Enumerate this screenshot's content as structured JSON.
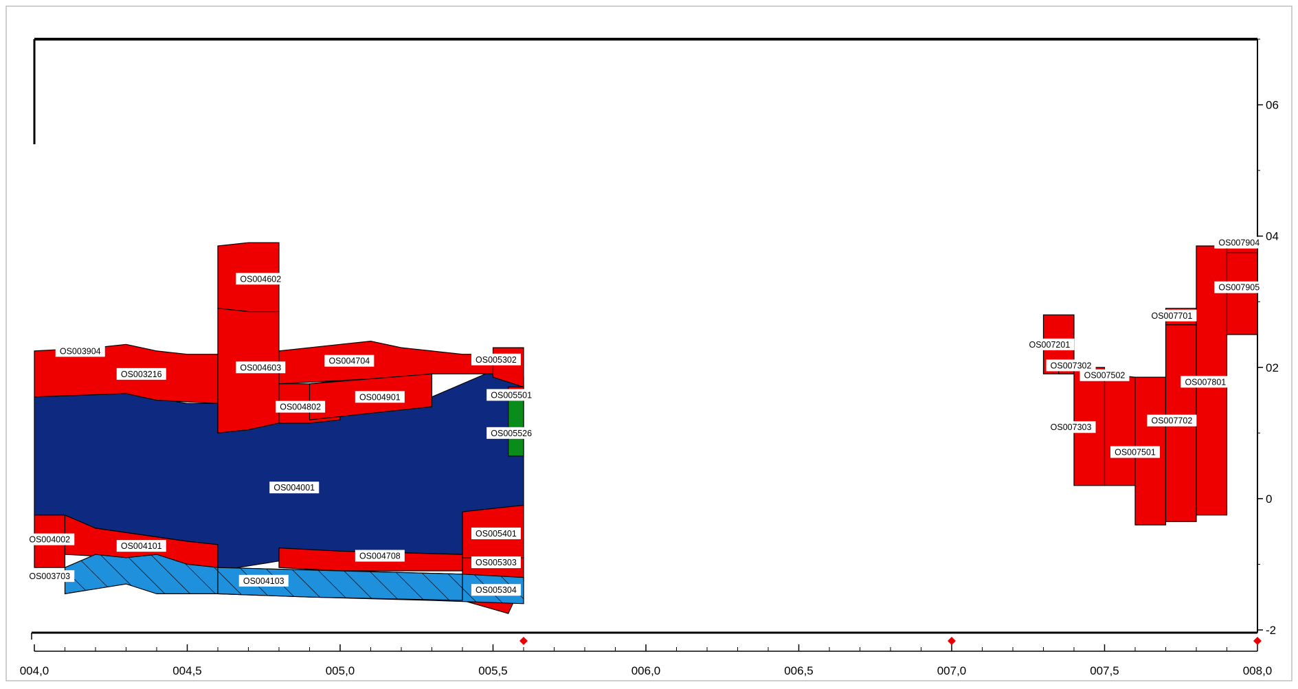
{
  "chart_data": {
    "type": "area",
    "title": "",
    "xlabel": "",
    "ylabel": "",
    "xlim": [
      4.0,
      8.0
    ],
    "ylim": [
      -2,
      7
    ],
    "x_tick_labels": [
      "004,0",
      "004,5",
      "005,0",
      "005,5",
      "006,0",
      "006,5",
      "007,0",
      "007,5",
      "008,0"
    ],
    "x_ticks": [
      4.0,
      4.5,
      5.0,
      5.5,
      6.0,
      6.5,
      7.0,
      7.5,
      8.0
    ],
    "y_tick_labels": [
      "06",
      "04",
      "02",
      "0",
      "-2"
    ],
    "y_ticks": [
      6,
      4,
      2,
      0,
      -2
    ],
    "minor_x_step": 0.1,
    "grid": false,
    "markers": [
      5.6,
      7.0,
      8.0
    ],
    "colors": {
      "red": "#ee0000",
      "navy": "#0e2a80",
      "lightblue": "#1e90dc",
      "green": "#0a8c1a",
      "outline": "#000000",
      "marker": "#e60000"
    },
    "layers": [
      {
        "name": "OS004001",
        "color": "navy",
        "hatch": false,
        "top": [
          [
            4.0,
            1.55
          ],
          [
            4.3,
            1.6
          ],
          [
            4.5,
            1.45
          ],
          [
            4.6,
            1.45
          ],
          [
            4.6,
            1.0
          ],
          [
            5.3,
            1.55
          ],
          [
            5.5,
            1.95
          ],
          [
            5.6,
            1.85
          ]
        ],
        "bottom": [
          [
            4.0,
            -0.25
          ],
          [
            4.2,
            -0.45
          ],
          [
            4.5,
            -0.65
          ],
          [
            4.6,
            -1.1
          ],
          [
            4.8,
            -0.95
          ],
          [
            5.0,
            -0.8
          ],
          [
            5.4,
            -0.85
          ],
          [
            5.5,
            -0.2
          ],
          [
            5.6,
            -0.1
          ]
        ]
      },
      {
        "name": "OS005526",
        "color": "green",
        "hatch": false,
        "top": [
          [
            5.55,
            1.5
          ],
          [
            5.6,
            1.5
          ]
        ],
        "bottom": [
          [
            5.55,
            0.65
          ],
          [
            5.6,
            0.65
          ]
        ]
      },
      {
        "name": "OS003904",
        "color": "red",
        "hatch": false,
        "top": [
          [
            4.0,
            2.25
          ],
          [
            4.2,
            2.3
          ],
          [
            4.3,
            2.35
          ],
          [
            4.4,
            2.25
          ],
          [
            4.5,
            2.2
          ],
          [
            4.6,
            2.2
          ]
        ],
        "bottom": [
          [
            4.0,
            1.55
          ],
          [
            4.3,
            1.6
          ],
          [
            4.4,
            1.5
          ],
          [
            4.6,
            1.45
          ]
        ]
      },
      {
        "name": "OS004602",
        "color": "red",
        "hatch": false,
        "top": [
          [
            4.6,
            3.85
          ],
          [
            4.7,
            3.9
          ],
          [
            4.8,
            3.9
          ]
        ],
        "bottom": [
          [
            4.6,
            2.9
          ],
          [
            4.7,
            2.85
          ],
          [
            4.8,
            2.85
          ]
        ]
      },
      {
        "name": "OS004603",
        "color": "red",
        "hatch": false,
        "top": [
          [
            4.6,
            2.9
          ],
          [
            4.7,
            2.85
          ],
          [
            4.8,
            2.85
          ]
        ],
        "bottom": [
          [
            4.6,
            1.0
          ],
          [
            4.7,
            1.05
          ],
          [
            4.8,
            1.15
          ]
        ]
      },
      {
        "name": "OS004704",
        "color": "red",
        "hatch": false,
        "top": [
          [
            4.8,
            2.25
          ],
          [
            5.0,
            2.35
          ],
          [
            5.1,
            2.4
          ],
          [
            5.2,
            2.3
          ],
          [
            5.3,
            2.25
          ],
          [
            5.4,
            2.2
          ],
          [
            5.5,
            2.2
          ]
        ],
        "bottom": [
          [
            4.8,
            1.75
          ],
          [
            5.0,
            1.8
          ],
          [
            5.2,
            1.85
          ],
          [
            5.3,
            1.9
          ],
          [
            5.5,
            1.9
          ]
        ]
      },
      {
        "name": "OS004802",
        "color": "red",
        "hatch": false,
        "top": [
          [
            4.8,
            1.75
          ],
          [
            4.9,
            1.75
          ],
          [
            5.0,
            1.8
          ]
        ],
        "bottom": [
          [
            4.8,
            1.15
          ],
          [
            4.9,
            1.15
          ],
          [
            5.0,
            1.2
          ]
        ]
      },
      {
        "name": "OS004901",
        "color": "red",
        "hatch": false,
        "top": [
          [
            4.9,
            1.75
          ],
          [
            5.3,
            1.9
          ]
        ],
        "bottom": [
          [
            4.9,
            1.2
          ],
          [
            5.3,
            1.4
          ]
        ]
      },
      {
        "name": "OS005302",
        "color": "red",
        "hatch": false,
        "top": [
          [
            5.5,
            2.3
          ],
          [
            5.6,
            2.3
          ]
        ],
        "bottom": [
          [
            5.5,
            1.85
          ],
          [
            5.6,
            1.7
          ]
        ]
      },
      {
        "name": "OS005501",
        "color": "red",
        "hatch": false,
        "top": [
          [
            5.55,
            1.7
          ],
          [
            5.6,
            1.7
          ]
        ],
        "bottom": [
          [
            5.55,
            1.5
          ],
          [
            5.6,
            1.5
          ]
        ]
      },
      {
        "name": "OS004002",
        "color": "red",
        "hatch": false,
        "top": [
          [
            4.0,
            -0.25
          ],
          [
            4.1,
            -0.25
          ]
        ],
        "bottom": [
          [
            4.0,
            -1.05
          ],
          [
            4.1,
            -1.05
          ]
        ]
      },
      {
        "name": "OS004101",
        "color": "red",
        "hatch": false,
        "top": [
          [
            4.1,
            -0.25
          ],
          [
            4.2,
            -0.45
          ],
          [
            4.5,
            -0.65
          ],
          [
            4.6,
            -0.7
          ]
        ],
        "bottom": [
          [
            4.1,
            -0.85
          ],
          [
            4.3,
            -0.9
          ],
          [
            4.5,
            -1.0
          ],
          [
            4.6,
            -1.05
          ]
        ]
      },
      {
        "name": "OS004708",
        "color": "red",
        "hatch": false,
        "top": [
          [
            4.8,
            -0.75
          ],
          [
            5.0,
            -0.8
          ],
          [
            5.4,
            -0.85
          ]
        ],
        "bottom": [
          [
            4.8,
            -1.05
          ],
          [
            5.0,
            -1.1
          ],
          [
            5.4,
            -1.1
          ]
        ]
      },
      {
        "name": "OS005401",
        "color": "red",
        "hatch": false,
        "top": [
          [
            5.4,
            -0.2
          ],
          [
            5.5,
            -0.15
          ],
          [
            5.6,
            -0.1
          ]
        ],
        "bottom": [
          [
            5.4,
            -0.9
          ],
          [
            5.6,
            -0.9
          ]
        ]
      },
      {
        "name": "OS005303",
        "color": "red",
        "hatch": false,
        "top": [
          [
            5.4,
            -0.9
          ],
          [
            5.6,
            -0.9
          ]
        ],
        "bottom": [
          [
            5.4,
            -1.25
          ],
          [
            5.6,
            -1.25
          ]
        ]
      },
      {
        "name": "OS005304",
        "color": "red",
        "hatch": false,
        "top": [
          [
            5.4,
            -1.25
          ],
          [
            5.6,
            -1.25
          ]
        ],
        "bottom": [
          [
            5.4,
            -1.55
          ],
          [
            5.55,
            -1.75
          ]
        ]
      },
      {
        "name": "OS003703",
        "color": "lightblue",
        "hatch": true,
        "top": [
          [
            4.1,
            -1.05
          ],
          [
            4.2,
            -0.85
          ],
          [
            4.3,
            -0.9
          ],
          [
            4.4,
            -0.85
          ],
          [
            4.5,
            -1.0
          ],
          [
            4.6,
            -1.05
          ],
          [
            5.0,
            -1.1
          ],
          [
            5.4,
            -1.15
          ],
          [
            5.6,
            -1.2
          ]
        ],
        "bottom": [
          [
            4.1,
            -1.45
          ],
          [
            4.3,
            -1.3
          ],
          [
            4.4,
            -1.45
          ],
          [
            4.6,
            -1.45
          ],
          [
            4.9,
            -1.5
          ],
          [
            5.3,
            -1.55
          ],
          [
            5.6,
            -1.6
          ]
        ]
      },
      {
        "name": "OS004103",
        "color": "lightblue",
        "hatch": true,
        "top": [
          [
            4.6,
            -1.05
          ],
          [
            5.0,
            -1.1
          ],
          [
            5.4,
            -1.15
          ]
        ],
        "bottom": [
          [
            4.6,
            -1.45
          ],
          [
            4.9,
            -1.5
          ],
          [
            5.4,
            -1.55
          ]
        ]
      },
      {
        "name": "OS007201",
        "color": "red",
        "hatch": false,
        "top": [
          [
            7.3,
            2.8
          ],
          [
            7.4,
            2.8
          ]
        ],
        "bottom": [
          [
            7.3,
            1.9
          ],
          [
            7.4,
            1.9
          ]
        ]
      },
      {
        "name": "OS007302",
        "color": "red",
        "hatch": false,
        "top": [
          [
            7.35,
            2.0
          ],
          [
            7.4,
            2.0
          ]
        ],
        "bottom": [
          [
            7.35,
            1.9
          ],
          [
            7.4,
            1.9
          ]
        ]
      },
      {
        "name": "OS007303",
        "color": "red",
        "hatch": false,
        "top": [
          [
            7.4,
            2.0
          ],
          [
            7.5,
            2.0
          ]
        ],
        "bottom": [
          [
            7.4,
            0.2
          ],
          [
            7.5,
            0.2
          ]
        ]
      },
      {
        "name": "OS007502",
        "color": "red",
        "hatch": false,
        "top": [
          [
            7.5,
            1.9
          ],
          [
            7.6,
            1.85
          ]
        ],
        "bottom": [
          [
            7.5,
            0.2
          ],
          [
            7.6,
            0.2
          ]
        ]
      },
      {
        "name": "OS007501",
        "color": "red",
        "hatch": false,
        "top": [
          [
            7.6,
            1.85
          ],
          [
            7.7,
            1.85
          ]
        ],
        "bottom": [
          [
            7.6,
            -0.4
          ],
          [
            7.7,
            -0.4
          ]
        ]
      },
      {
        "name": "OS007702",
        "color": "red",
        "hatch": false,
        "top": [
          [
            7.7,
            2.65
          ],
          [
            7.8,
            2.65
          ]
        ],
        "bottom": [
          [
            7.7,
            -0.35
          ],
          [
            7.8,
            -0.35
          ]
        ]
      },
      {
        "name": "OS007701",
        "color": "red",
        "hatch": false,
        "top": [
          [
            7.7,
            2.9
          ],
          [
            7.8,
            2.9
          ]
        ],
        "bottom": [
          [
            7.7,
            2.65
          ],
          [
            7.8,
            2.65
          ]
        ]
      },
      {
        "name": "OS007801",
        "color": "red",
        "hatch": false,
        "top": [
          [
            7.8,
            3.85
          ],
          [
            7.9,
            3.85
          ]
        ],
        "bottom": [
          [
            7.8,
            -0.25
          ],
          [
            7.9,
            -0.25
          ]
        ]
      },
      {
        "name": "OS007904",
        "color": "red",
        "hatch": false,
        "top": [
          [
            7.9,
            3.85
          ],
          [
            8.0,
            3.85
          ]
        ],
        "bottom": [
          [
            7.9,
            3.75
          ],
          [
            8.0,
            3.75
          ]
        ]
      },
      {
        "name": "OS007905",
        "color": "red",
        "hatch": false,
        "top": [
          [
            7.9,
            3.75
          ],
          [
            8.0,
            3.75
          ]
        ],
        "bottom": [
          [
            7.9,
            2.5
          ],
          [
            8.0,
            2.5
          ]
        ]
      }
    ],
    "labels": [
      {
        "text": "OS003904",
        "x": 4.15,
        "y": 2.25
      },
      {
        "text": "OS003216",
        "x": 4.35,
        "y": 1.9
      },
      {
        "text": "OS004602",
        "x": 4.74,
        "y": 3.35
      },
      {
        "text": "OS004603",
        "x": 4.74,
        "y": 2.0
      },
      {
        "text": "OS004704",
        "x": 5.03,
        "y": 2.1
      },
      {
        "text": "OS004802",
        "x": 4.87,
        "y": 1.4
      },
      {
        "text": "OS004901",
        "x": 5.13,
        "y": 1.55
      },
      {
        "text": "OS005302",
        "x": 5.51,
        "y": 2.12
      },
      {
        "text": "OS005501",
        "x": 5.56,
        "y": 1.58
      },
      {
        "text": "OS005526",
        "x": 5.56,
        "y": 1.0
      },
      {
        "text": "OS004001",
        "x": 4.85,
        "y": 0.17
      },
      {
        "text": "OS004002",
        "x": 4.05,
        "y": -0.62
      },
      {
        "text": "OS004101",
        "x": 4.35,
        "y": -0.72
      },
      {
        "text": "OS004708",
        "x": 5.13,
        "y": -0.87
      },
      {
        "text": "OS005401",
        "x": 5.51,
        "y": -0.53
      },
      {
        "text": "OS005303",
        "x": 5.51,
        "y": -0.97
      },
      {
        "text": "OS003703",
        "x": 4.05,
        "y": -1.18
      },
      {
        "text": "OS004103",
        "x": 4.75,
        "y": -1.25
      },
      {
        "text": "OS005304",
        "x": 5.51,
        "y": -1.39
      },
      {
        "text": "OS007201",
        "x": 7.32,
        "y": 2.35
      },
      {
        "text": "OS007302",
        "x": 7.39,
        "y": 2.03
      },
      {
        "text": "OS007502",
        "x": 7.5,
        "y": 1.88
      },
      {
        "text": "OS007303",
        "x": 7.39,
        "y": 1.09
      },
      {
        "text": "OS007501",
        "x": 7.6,
        "y": 0.71
      },
      {
        "text": "OS007702",
        "x": 7.72,
        "y": 1.19
      },
      {
        "text": "OS007701",
        "x": 7.72,
        "y": 2.79
      },
      {
        "text": "OS007801",
        "x": 7.83,
        "y": 1.78
      },
      {
        "text": "OS007904",
        "x": 7.94,
        "y": 3.9
      },
      {
        "text": "OS007905",
        "x": 7.94,
        "y": 3.22
      }
    ]
  }
}
